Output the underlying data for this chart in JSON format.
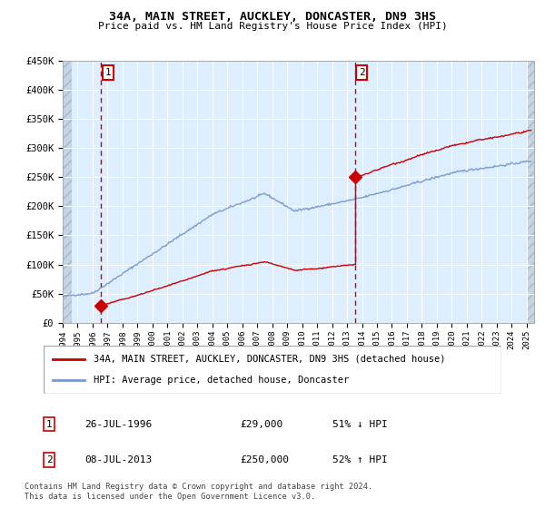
{
  "title": "34A, MAIN STREET, AUCKLEY, DONCASTER, DN9 3HS",
  "subtitle": "Price paid vs. HM Land Registry's House Price Index (HPI)",
  "ylim": [
    0,
    450000
  ],
  "xlim_start": 1994.0,
  "xlim_end": 2025.5,
  "yticks": [
    0,
    50000,
    100000,
    150000,
    200000,
    250000,
    300000,
    350000,
    400000,
    450000
  ],
  "ytick_labels": [
    "£0",
    "£50K",
    "£100K",
    "£150K",
    "£200K",
    "£250K",
    "£300K",
    "£350K",
    "£400K",
    "£450K"
  ],
  "xtick_years": [
    1994,
    1995,
    1996,
    1997,
    1998,
    1999,
    2000,
    2001,
    2002,
    2003,
    2004,
    2005,
    2006,
    2007,
    2008,
    2009,
    2010,
    2011,
    2012,
    2013,
    2014,
    2015,
    2016,
    2017,
    2018,
    2019,
    2020,
    2021,
    2022,
    2023,
    2024,
    2025
  ],
  "transaction1_year": 1996.57,
  "transaction1_price": 29000,
  "transaction2_year": 2013.52,
  "transaction2_price": 250000,
  "red_line_color": "#cc0000",
  "blue_line_color": "#7799cc",
  "dashed_line_color": "#cc0000",
  "marker_color": "#cc0000",
  "background_color": "#ddeeff",
  "grid_color": "#ffffff",
  "legend_label_red": "34A, MAIN STREET, AUCKLEY, DONCASTER, DN9 3HS (detached house)",
  "legend_label_blue": "HPI: Average price, detached house, Doncaster",
  "annotation1": "1",
  "annotation2": "2",
  "footer1": "Contains HM Land Registry data © Crown copyright and database right 2024.",
  "footer2": "This data is licensed under the Open Government Licence v3.0.",
  "table_row1": [
    "1",
    "26-JUL-1996",
    "£29,000",
    "51% ↓ HPI"
  ],
  "table_row2": [
    "2",
    "08-JUL-2013",
    "£250,000",
    "52% ↑ HPI"
  ]
}
